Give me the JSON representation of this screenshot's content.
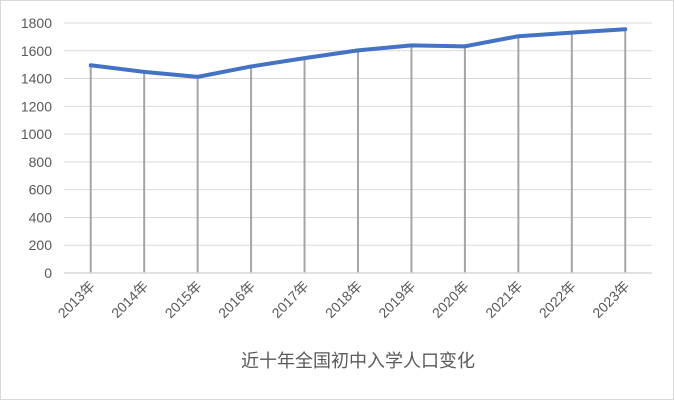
{
  "chart_data": {
    "type": "line",
    "title": "",
    "xlabel": "近十年全国初中入学人口变化",
    "ylabel": "",
    "categories": [
      "2013年",
      "2014年",
      "2015年",
      "2016年",
      "2017年",
      "2018年",
      "2019年",
      "2020年",
      "2021年",
      "2022年",
      "2023年"
    ],
    "values": [
      1496,
      1448,
      1412,
      1487,
      1547,
      1603,
      1639,
      1632,
      1705,
      1731,
      1755
    ],
    "ylim": [
      0,
      1800
    ],
    "yticks": [
      0,
      200,
      400,
      600,
      800,
      1000,
      1200,
      1400,
      1600,
      1800
    ],
    "grid": true,
    "drop_lines": true,
    "legend": "none",
    "colors": {
      "line": "#4472c4",
      "grid": "#d9d9d9",
      "drop_line": "#a5a5a5",
      "text": "#595959"
    }
  }
}
